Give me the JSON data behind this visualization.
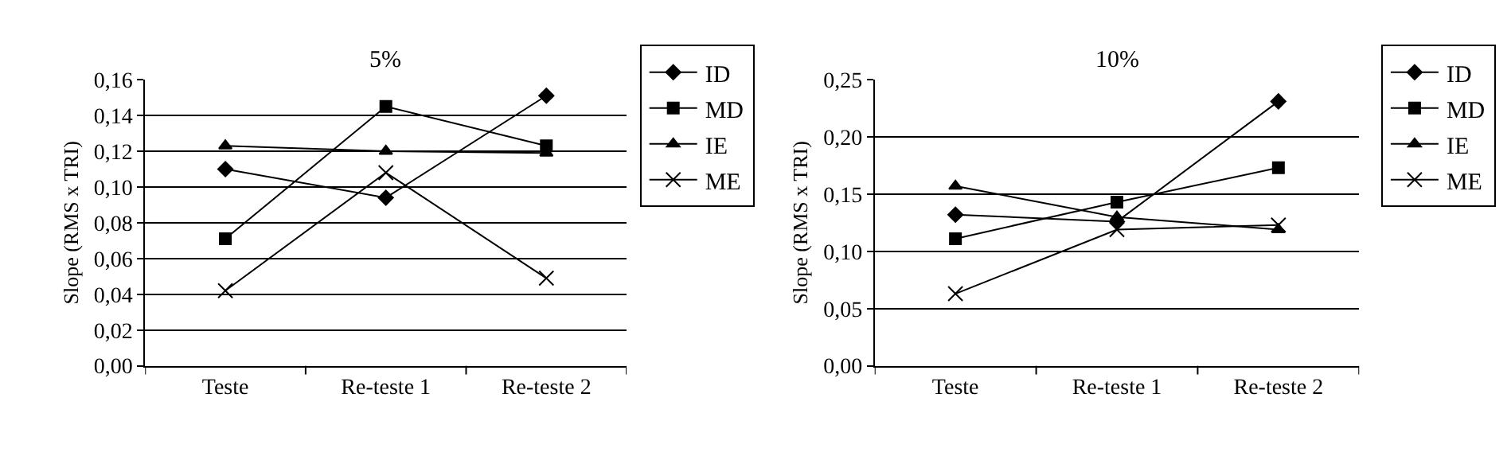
{
  "chart_data": [
    {
      "type": "line",
      "title": "5%",
      "ylabel": "Slope (RMS x TRI)",
      "categories": [
        "Teste",
        "Re-teste 1",
        "Re-teste 2"
      ],
      "series": [
        {
          "name": "ID",
          "color": "#000000",
          "marker": "diamond",
          "values": [
            0.11,
            0.094,
            0.151
          ]
        },
        {
          "name": "MD",
          "color": "#000000",
          "marker": "square",
          "values": [
            0.071,
            0.145,
            0.123
          ]
        },
        {
          "name": "IE",
          "color": "#000000",
          "marker": "triangle",
          "values": [
            0.123,
            0.12,
            0.119
          ]
        },
        {
          "name": "ME",
          "color": "#000000",
          "marker": "cross",
          "values": [
            0.042,
            0.108,
            0.049
          ]
        }
      ],
      "ylim": [
        0,
        0.16
      ],
      "yticks": [
        {
          "value": 0,
          "label": "0,00"
        },
        {
          "value": 0.02,
          "label": "0,02"
        },
        {
          "value": 0.04,
          "label": "0,04"
        },
        {
          "value": 0.06,
          "label": "0,06"
        },
        {
          "value": 0.08,
          "label": "0,08"
        },
        {
          "value": 0.1,
          "label": "0,10"
        },
        {
          "value": 0.12,
          "label": "0,12"
        },
        {
          "value": 0.14,
          "label": "0,14"
        },
        {
          "value": 0.16,
          "label": "0,16"
        }
      ],
      "grid": "y",
      "legend": "top right",
      "line_style": "solid"
    },
    {
      "type": "line",
      "title": "10%",
      "ylabel": "Slope (RMS x TRI)",
      "categories": [
        "Teste",
        "Re-teste 1",
        "Re-teste 2"
      ],
      "series": [
        {
          "name": "ID",
          "color": "#000000",
          "marker": "diamond",
          "values": [
            0.132,
            0.126,
            0.231
          ]
        },
        {
          "name": "MD",
          "color": "#000000",
          "marker": "square",
          "values": [
            0.111,
            0.143,
            0.173
          ]
        },
        {
          "name": "IE",
          "color": "#000000",
          "marker": "triangle",
          "values": [
            0.157,
            0.13,
            0.119
          ]
        },
        {
          "name": "ME",
          "color": "#000000",
          "marker": "cross",
          "values": [
            0.063,
            0.119,
            0.123
          ]
        }
      ],
      "ylim": [
        0,
        0.25
      ],
      "yticks": [
        {
          "value": 0,
          "label": "0,00"
        },
        {
          "value": 0.05,
          "label": "0,05"
        },
        {
          "value": 0.1,
          "label": "0,10"
        },
        {
          "value": 0.15,
          "label": "0,15"
        },
        {
          "value": 0.2,
          "label": "0,20"
        },
        {
          "value": 0.25,
          "label": "0,25"
        }
      ],
      "grid": "y",
      "legend": "top right",
      "line_style": "solid"
    }
  ]
}
